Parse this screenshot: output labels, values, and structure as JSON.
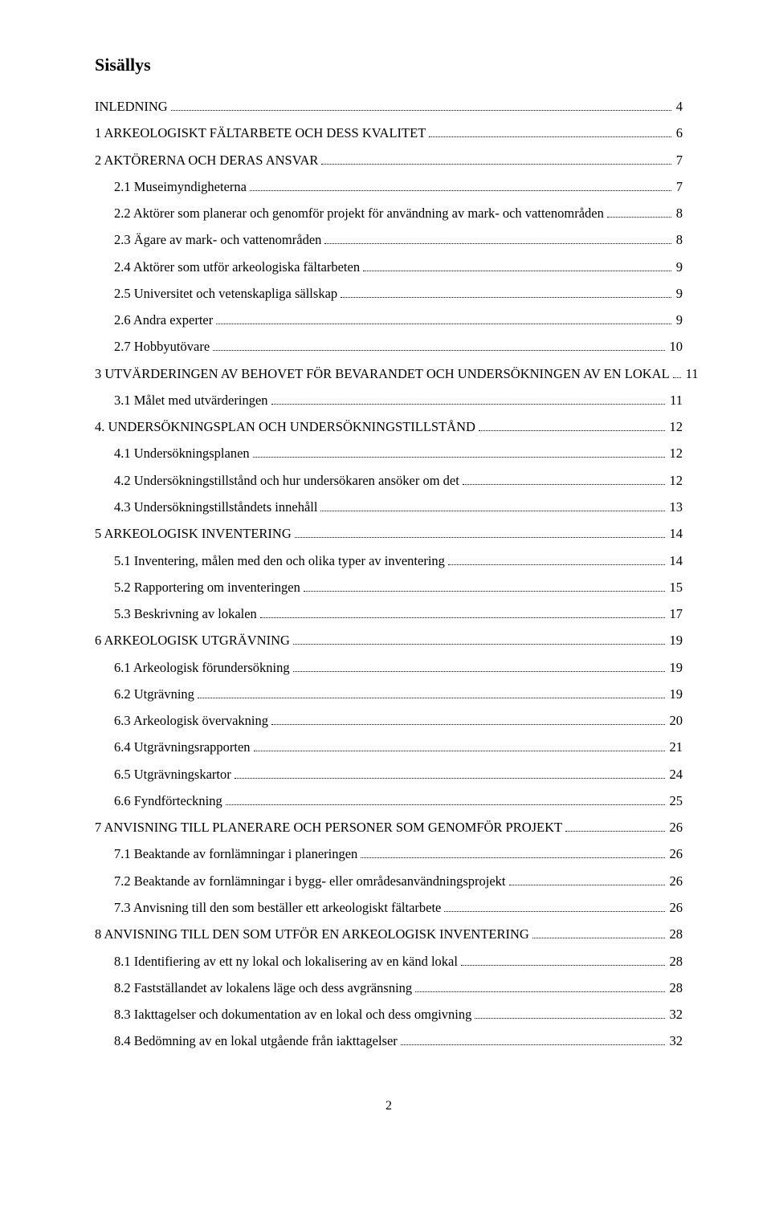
{
  "title": "Sisällys",
  "page_number": "2",
  "toc": [
    {
      "label": "INLEDNING",
      "page": "4",
      "indent": 0
    },
    {
      "label": "1 ARKEOLOGISKT FÄLTARBETE OCH DESS KVALITET",
      "page": "6",
      "indent": 0
    },
    {
      "label": "2 AKTÖRERNA OCH DERAS ANSVAR",
      "page": "7",
      "indent": 0
    },
    {
      "label": "2.1 Museimyndigheterna",
      "page": "7",
      "indent": 1
    },
    {
      "label": "2.2 Aktörer som planerar och genomför projekt för användning av mark- och vattenområden",
      "page": "8",
      "indent": 1
    },
    {
      "label": "2.3 Ägare av mark- och vattenområden",
      "page": "8",
      "indent": 1
    },
    {
      "label": "2.4 Aktörer som utför arkeologiska fältarbeten",
      "page": "9",
      "indent": 1
    },
    {
      "label": "2.5 Universitet och vetenskapliga sällskap",
      "page": "9",
      "indent": 1
    },
    {
      "label": "2.6 Andra experter",
      "page": "9",
      "indent": 1
    },
    {
      "label": "2.7 Hobbyutövare",
      "page": "10",
      "indent": 1
    },
    {
      "label": "3 UTVÄRDERINGEN AV BEHOVET FÖR BEVARANDET OCH UNDERSÖKNINGEN AV EN LOKAL",
      "page": "11",
      "indent": 0
    },
    {
      "label": "3.1 Målet med utvärderingen",
      "page": "11",
      "indent": 1
    },
    {
      "label": "4. UNDERSÖKNINGSPLAN OCH UNDERSÖKNINGSTILLSTÅND",
      "page": "12",
      "indent": 0
    },
    {
      "label": "4.1 Undersökningsplanen",
      "page": "12",
      "indent": 1
    },
    {
      "label": "4.2 Undersökningstillstånd och hur undersökaren ansöker om det",
      "page": "12",
      "indent": 1
    },
    {
      "label": "4.3 Undersökningstillståndets innehåll",
      "page": "13",
      "indent": 1
    },
    {
      "label": "5 ARKEOLOGISK INVENTERING",
      "page": "14",
      "indent": 0
    },
    {
      "label": "5.1 Inventering, målen med den och olika typer av inventering",
      "page": "14",
      "indent": 1
    },
    {
      "label": "5.2 Rapportering om inventeringen",
      "page": "15",
      "indent": 1
    },
    {
      "label": "5.3 Beskrivning av lokalen",
      "page": "17",
      "indent": 1
    },
    {
      "label": "6 ARKEOLOGISK UTGRÄVNING",
      "page": "19",
      "indent": 0
    },
    {
      "label": "6.1 Arkeologisk förundersökning",
      "page": "19",
      "indent": 1
    },
    {
      "label": "6.2 Utgrävning",
      "page": "19",
      "indent": 1
    },
    {
      "label": "6.3 Arkeologisk övervakning",
      "page": "20",
      "indent": 1
    },
    {
      "label": "6.4 Utgrävningsrapporten",
      "page": "21",
      "indent": 1
    },
    {
      "label": "6.5 Utgrävningskartor",
      "page": "24",
      "indent": 1
    },
    {
      "label": "6.6 Fyndförteckning",
      "page": "25",
      "indent": 1
    },
    {
      "label": "7 ANVISNING TILL PLANERARE OCH PERSONER SOM GENOMFÖR PROJEKT",
      "page": "26",
      "indent": 0
    },
    {
      "label": "7.1 Beaktande av fornlämningar i planeringen",
      "page": "26",
      "indent": 1
    },
    {
      "label": "7.2 Beaktande av fornlämningar i bygg- eller områdesanvändningsprojekt",
      "page": "26",
      "indent": 1
    },
    {
      "label": "7.3 Anvisning till den som beställer ett arkeologiskt fältarbete",
      "page": "26",
      "indent": 1
    },
    {
      "label": "8 ANVISNING TILL DEN SOM UTFÖR EN ARKEOLOGISK INVENTERING",
      "page": "28",
      "indent": 0
    },
    {
      "label": "8.1 Identifiering av ett ny lokal och lokalisering av en känd lokal",
      "page": "28",
      "indent": 1
    },
    {
      "label": "8.2 Fastställandet av lokalens läge och dess avgränsning",
      "page": "28",
      "indent": 1
    },
    {
      "label": "8.3 Iakttagelser och dokumentation av en lokal och dess omgivning",
      "page": "32",
      "indent": 1
    },
    {
      "label": "8.4 Bedömning av en lokal utgående från iakttagelser",
      "page": "32",
      "indent": 1
    }
  ]
}
